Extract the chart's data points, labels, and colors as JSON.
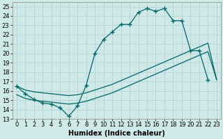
{
  "xlabel": "Humidex (Indice chaleur)",
  "background_color": "#cfe8e8",
  "grid_color": "#b0d0d0",
  "line_color": "#006666",
  "ylim": [
    13,
    25.5
  ],
  "xlim": [
    -0.5,
    23.5
  ],
  "yticks": [
    13,
    14,
    15,
    16,
    17,
    18,
    19,
    20,
    21,
    22,
    23,
    24,
    25
  ],
  "xticks": [
    0,
    1,
    2,
    3,
    4,
    5,
    6,
    7,
    8,
    9,
    10,
    11,
    12,
    13,
    14,
    15,
    16,
    17,
    18,
    19,
    20,
    21,
    22,
    23
  ],
  "main_x": [
    0,
    1,
    2,
    3,
    4,
    5,
    6,
    7,
    8,
    9,
    10,
    11,
    12,
    13,
    14,
    15,
    16,
    17,
    18,
    19,
    20,
    21,
    22
  ],
  "main_y": [
    16.5,
    15.7,
    15.1,
    14.7,
    14.6,
    14.2,
    13.3,
    14.4,
    16.6,
    20.0,
    21.5,
    22.3,
    23.1,
    23.1,
    24.4,
    24.8,
    24.5,
    24.8,
    23.5,
    23.5,
    20.3,
    20.3,
    17.2
  ],
  "diag1_x": [
    0,
    1,
    2,
    3,
    4,
    5,
    6,
    7,
    8,
    9,
    10,
    11,
    12,
    13,
    14,
    15,
    16,
    17,
    18,
    19,
    20,
    21,
    22,
    23
  ],
  "diag1_y": [
    15.6,
    15.2,
    15.0,
    14.9,
    14.8,
    14.7,
    14.6,
    14.7,
    14.9,
    15.2,
    15.5,
    15.8,
    16.2,
    16.6,
    17.0,
    17.4,
    17.8,
    18.2,
    18.6,
    19.0,
    19.4,
    19.8,
    20.2,
    17.2
  ],
  "diag2_x": [
    0,
    1,
    2,
    3,
    4,
    5,
    6,
    7,
    8,
    9,
    10,
    11,
    12,
    13,
    14,
    15,
    16,
    17,
    18,
    19,
    20,
    21,
    22,
    23
  ],
  "diag2_y": [
    16.5,
    16.1,
    15.9,
    15.8,
    15.7,
    15.6,
    15.5,
    15.6,
    15.8,
    16.1,
    16.4,
    16.7,
    17.1,
    17.5,
    17.9,
    18.3,
    18.7,
    19.1,
    19.5,
    19.9,
    20.3,
    20.7,
    21.1,
    17.2
  ]
}
